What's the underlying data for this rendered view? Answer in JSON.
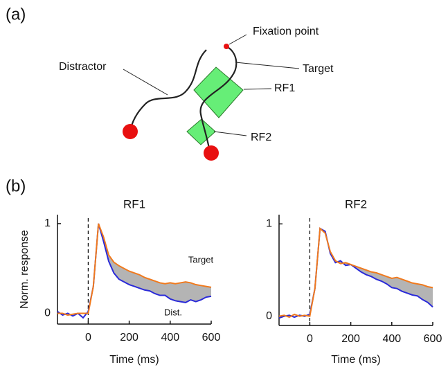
{
  "panels": [
    "(a)",
    "(b)"
  ],
  "diagram": {
    "fixation": "Fixation point",
    "target": "Target",
    "distractor": "Distractor",
    "rf1": "RF1",
    "rf2": "RF2"
  },
  "chart_data": [
    {
      "type": "line",
      "title": "RF1",
      "x_label": "Time (ms)",
      "y_label": "Norm. response",
      "x": [
        -150,
        -125,
        -100,
        -75,
        -50,
        -25,
        0,
        25,
        50,
        75,
        100,
        125,
        150,
        175,
        200,
        225,
        250,
        275,
        300,
        325,
        350,
        375,
        400,
        425,
        450,
        475,
        500,
        525,
        550,
        575,
        600
      ],
      "series": [
        {
          "name": "Target",
          "color": "#f07a1e",
          "values": [
            0,
            0,
            -0.02,
            -0.01,
            0,
            0,
            0,
            0.3,
            1.0,
            0.85,
            0.65,
            0.57,
            0.53,
            0.5,
            0.47,
            0.45,
            0.43,
            0.4,
            0.38,
            0.36,
            0.34,
            0.33,
            0.34,
            0.33,
            0.34,
            0.35,
            0.34,
            0.32,
            0.31,
            0.3,
            0.29
          ]
        },
        {
          "name": "Dist.",
          "color": "#2a2ad8",
          "values": [
            0.02,
            -0.02,
            0,
            -0.03,
            0,
            -0.05,
            0.02,
            0.3,
            1.0,
            0.8,
            0.58,
            0.45,
            0.38,
            0.35,
            0.32,
            0.3,
            0.28,
            0.26,
            0.25,
            0.22,
            0.2,
            0.2,
            0.16,
            0.14,
            0.13,
            0.12,
            0.15,
            0.13,
            0.15,
            0.18,
            0.19
          ]
        }
      ],
      "fill_between": "#b4b4b4",
      "vline": 0,
      "xlim": [
        -150,
        600
      ],
      "xticks": [
        0,
        200,
        400,
        600
      ],
      "ylim": [
        -0.12,
        1.1
      ],
      "yticks": [
        0,
        1
      ]
    },
    {
      "type": "line",
      "title": "RF2",
      "x_label": "Time (ms)",
      "x": [
        -150,
        -125,
        -100,
        -75,
        -50,
        -25,
        0,
        25,
        50,
        75,
        100,
        125,
        150,
        175,
        200,
        225,
        250,
        275,
        300,
        325,
        350,
        375,
        400,
        425,
        450,
        475,
        500,
        525,
        550,
        575,
        600
      ],
      "series": [
        {
          "color": "#f07a1e",
          "values": [
            0,
            0.01,
            -0.01,
            0.02,
            0,
            0.01,
            0,
            0.3,
            0.95,
            0.9,
            0.7,
            0.6,
            0.57,
            0.58,
            0.56,
            0.54,
            0.52,
            0.5,
            0.48,
            0.47,
            0.45,
            0.43,
            0.41,
            0.42,
            0.4,
            0.38,
            0.36,
            0.35,
            0.34,
            0.32,
            0.31
          ]
        },
        {
          "color": "#2a2ad8",
          "values": [
            -0.02,
            0,
            0.01,
            -0.01,
            0.01,
            0,
            0.02,
            0.3,
            0.95,
            0.92,
            0.68,
            0.58,
            0.6,
            0.55,
            0.56,
            0.52,
            0.48,
            0.45,
            0.43,
            0.4,
            0.38,
            0.35,
            0.31,
            0.3,
            0.27,
            0.25,
            0.23,
            0.22,
            0.18,
            0.15,
            0.1
          ]
        }
      ],
      "fill_between": "#b4b4b4",
      "vline": 0,
      "xlim": [
        -150,
        600
      ],
      "xticks": [
        0,
        200,
        400,
        600
      ],
      "ylim": [
        -0.1,
        1.1
      ],
      "yticks": [
        0,
        1
      ]
    }
  ]
}
